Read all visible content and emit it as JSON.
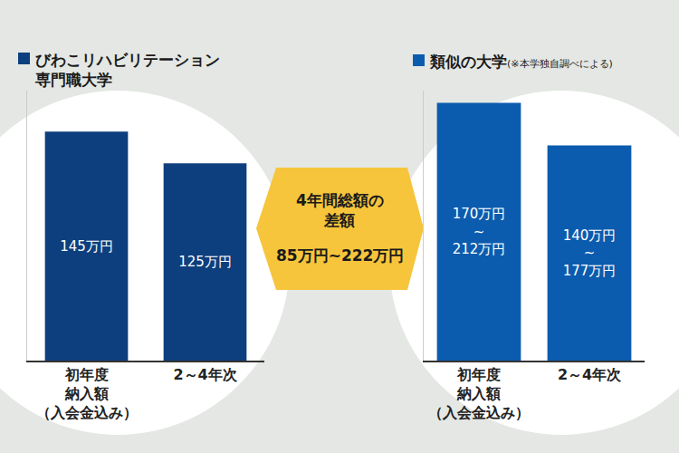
{
  "chart_data": [
    {
      "type": "bar",
      "title": "びわこリハビリテーション\n専門職大学",
      "categories": [
        "初年度\n納入額\n（入会金込み）",
        "2～4年次"
      ],
      "values": [
        145,
        125
      ],
      "value_labels": [
        "145万円",
        "125万円"
      ],
      "color": "#0d3f7e",
      "ylim": [
        0,
        171
      ],
      "data_labels": true,
      "tick_labels": "x",
      "grid": false
    },
    {
      "type": "bar",
      "title": "類似の大学",
      "subtitle": "(※本学独自調べによる)",
      "categories": [
        "初年度\n納入額\n（入会金込み）",
        "2～4年次"
      ],
      "values": [
        212,
        177
      ],
      "value_labels": [
        "170万円\n~\n212万円",
        "140万円\n~\n177万円"
      ],
      "color": "#0b5cae",
      "ylim": [
        0,
        222
      ],
      "data_labels": true,
      "tick_labels": "x",
      "grid": false
    }
  ],
  "callout": {
    "title": "4年間総額の\n差額",
    "text": "85万円~222万円"
  }
}
